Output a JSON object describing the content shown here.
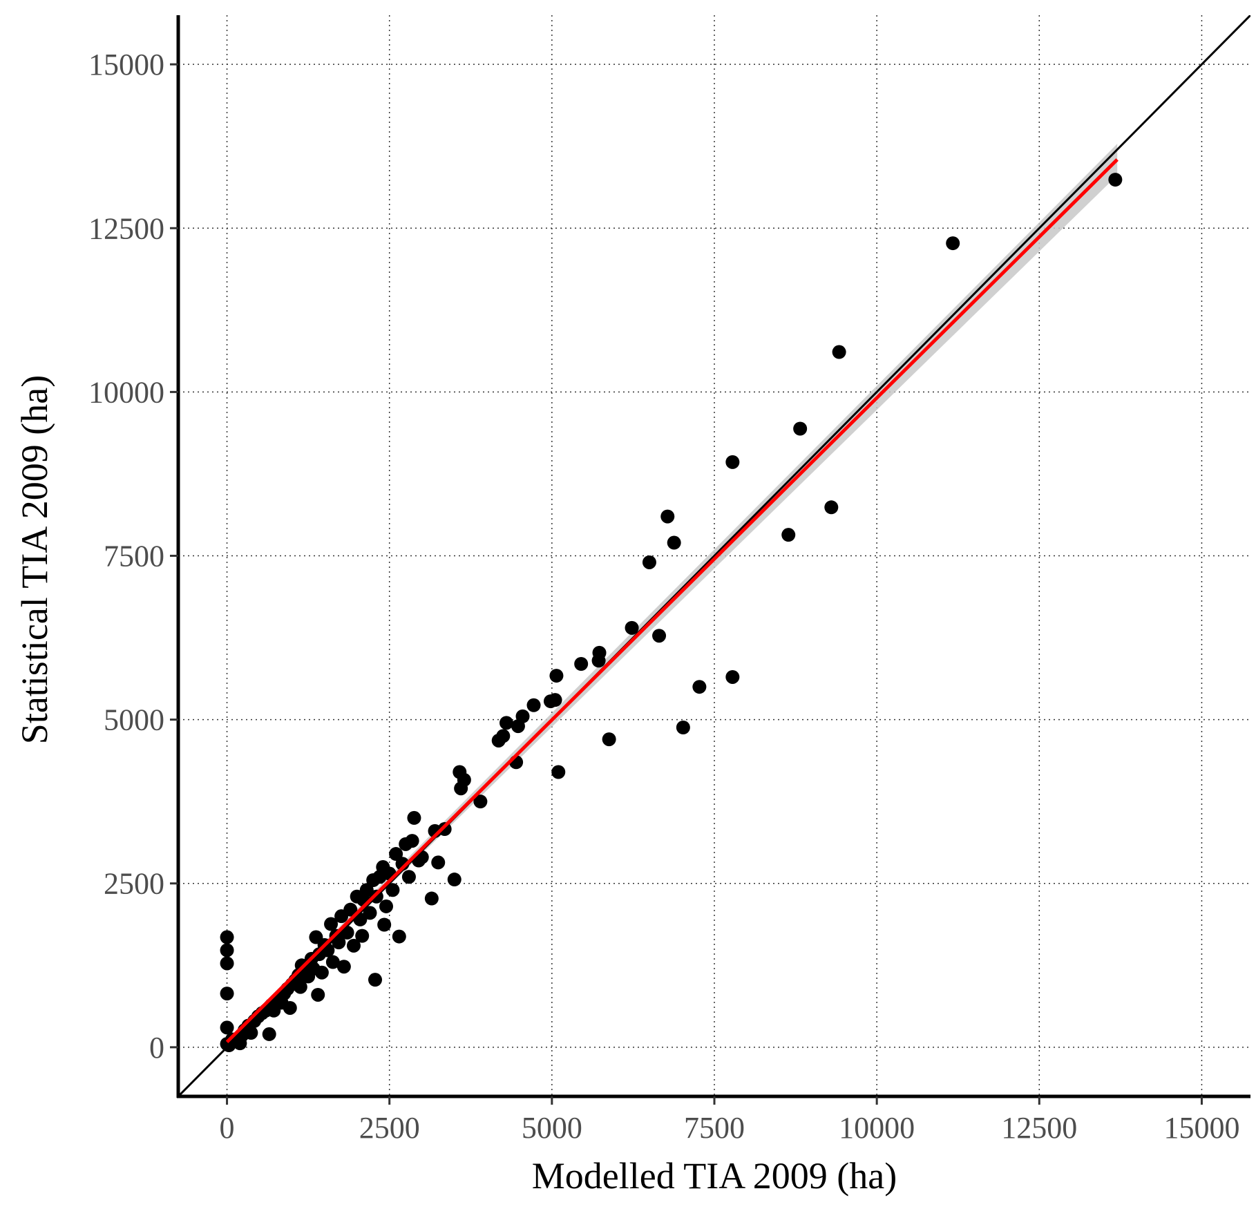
{
  "chart_data": {
    "type": "scatter",
    "xlabel": "Modelled TIA 2009 (ha)",
    "ylabel": "Statistical TIA 2009 (ha)",
    "xlim": [
      -750,
      15750
    ],
    "ylim": [
      -750,
      15750
    ],
    "x_ticks": [
      0,
      2500,
      5000,
      7500,
      10000,
      12500,
      15000
    ],
    "y_ticks": [
      0,
      2500,
      5000,
      7500,
      10000,
      12500,
      15000
    ],
    "x_tick_labels": [
      "0",
      "2500",
      "5000",
      "7500",
      "10000",
      "12500",
      "15000"
    ],
    "y_tick_labels": [
      "0",
      "2500",
      "5000",
      "7500",
      "10000",
      "12500",
      "15000"
    ],
    "grid": true,
    "grid_style": "dotted",
    "colors": {
      "points": "#000000",
      "fit_line": "#ff0000",
      "identity_line": "#000000",
      "confidence_band": "#c8c8c8"
    },
    "identity_line": {
      "slope": 1,
      "intercept": 0
    },
    "fit_line": {
      "x_range": [
        0,
        13700
      ],
      "slope": 0.983,
      "intercept": 80,
      "band_halfwidth_start": 30,
      "band_halfwidth_end": 240
    },
    "points": [
      [
        0,
        1680
      ],
      [
        0,
        1480
      ],
      [
        0,
        1280
      ],
      [
        0,
        820
      ],
      [
        0,
        300
      ],
      [
        0,
        50
      ],
      [
        30,
        30
      ],
      [
        80,
        120
      ],
      [
        150,
        100
      ],
      [
        200,
        60
      ],
      [
        230,
        180
      ],
      [
        270,
        260
      ],
      [
        330,
        330
      ],
      [
        370,
        220
      ],
      [
        420,
        400
      ],
      [
        480,
        470
      ],
      [
        540,
        520
      ],
      [
        600,
        560
      ],
      [
        650,
        200
      ],
      [
        680,
        640
      ],
      [
        720,
        560
      ],
      [
        780,
        730
      ],
      [
        840,
        680
      ],
      [
        880,
        820
      ],
      [
        930,
        890
      ],
      [
        970,
        600
      ],
      [
        1000,
        960
      ],
      [
        1050,
        1020
      ],
      [
        1100,
        1100
      ],
      [
        1130,
        920
      ],
      [
        1150,
        1250
      ],
      [
        1200,
        1180
      ],
      [
        1250,
        1080
      ],
      [
        1300,
        1350
      ],
      [
        1330,
        1200
      ],
      [
        1370,
        1680
      ],
      [
        1400,
        800
      ],
      [
        1420,
        1420
      ],
      [
        1460,
        1140
      ],
      [
        1500,
        1560
      ],
      [
        1550,
        1480
      ],
      [
        1600,
        1880
      ],
      [
        1630,
        1300
      ],
      [
        1680,
        1700
      ],
      [
        1720,
        1600
      ],
      [
        1760,
        2000
      ],
      [
        1800,
        1230
      ],
      [
        1850,
        1750
      ],
      [
        1900,
        2100
      ],
      [
        1950,
        1550
      ],
      [
        2000,
        2300
      ],
      [
        2050,
        1950
      ],
      [
        2080,
        1700
      ],
      [
        2100,
        2250
      ],
      [
        2150,
        2400
      ],
      [
        2200,
        2050
      ],
      [
        2250,
        2550
      ],
      [
        2280,
        1030
      ],
      [
        2300,
        2300
      ],
      [
        2350,
        2600
      ],
      [
        2400,
        2750
      ],
      [
        2420,
        1870
      ],
      [
        2450,
        2150
      ],
      [
        2500,
        2650
      ],
      [
        2550,
        2400
      ],
      [
        2600,
        2950
      ],
      [
        2650,
        1690
      ],
      [
        2700,
        2800
      ],
      [
        2750,
        3100
      ],
      [
        2800,
        2600
      ],
      [
        2850,
        3150
      ],
      [
        2880,
        3500
      ],
      [
        2950,
        2850
      ],
      [
        3000,
        2900
      ],
      [
        3150,
        2270
      ],
      [
        3200,
        3300
      ],
      [
        3250,
        2820
      ],
      [
        3350,
        3330
      ],
      [
        3500,
        2560
      ],
      [
        3580,
        4200
      ],
      [
        3600,
        3950
      ],
      [
        3650,
        4080
      ],
      [
        3900,
        3750
      ],
      [
        4180,
        4680
      ],
      [
        4250,
        4750
      ],
      [
        4300,
        4950
      ],
      [
        4450,
        4350
      ],
      [
        4480,
        4900
      ],
      [
        4550,
        5050
      ],
      [
        4720,
        5220
      ],
      [
        4980,
        5280
      ],
      [
        5050,
        5300
      ],
      [
        5070,
        5670
      ],
      [
        5100,
        4200
      ],
      [
        5450,
        5850
      ],
      [
        5720,
        5900
      ],
      [
        5730,
        6020
      ],
      [
        5880,
        4700
      ],
      [
        6230,
        6400
      ],
      [
        6500,
        7400
      ],
      [
        6650,
        6280
      ],
      [
        6780,
        8100
      ],
      [
        6880,
        7700
      ],
      [
        7020,
        4880
      ],
      [
        7270,
        5500
      ],
      [
        7780,
        8930
      ],
      [
        7780,
        5650
      ],
      [
        8640,
        7820
      ],
      [
        8820,
        9440
      ],
      [
        9300,
        8240
      ],
      [
        9420,
        10610
      ],
      [
        11170,
        12270
      ],
      [
        13670,
        13240
      ]
    ]
  }
}
